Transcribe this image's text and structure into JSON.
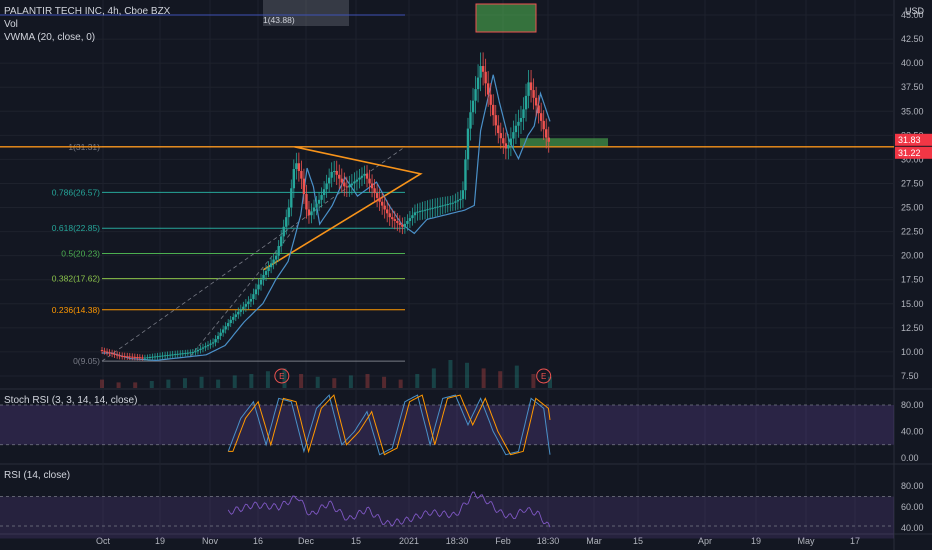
{
  "header": {
    "symbol": "PALANTIR TECH INC, 4h, Cboe BZX",
    "vol": "Vol",
    "vwma": "VWMA (20, close, 0)",
    "currency": "USD"
  },
  "stoch": {
    "label": "Stoch RSI (3, 3, 14, 14, close)"
  },
  "rsi": {
    "label": "RSI (14, close)"
  },
  "colors": {
    "background": "#131722",
    "up": "#26a69a",
    "down": "#ef5350",
    "vwma": "#4a90c8",
    "trend": "#f7931a",
    "fib_teal": "#26a69a",
    "fib_green": "#4caf50",
    "fib_lime": "#8bc34a",
    "fib_orange": "#ff9800",
    "fib_gray": "#787b86",
    "rsi_band": "#7e57c2",
    "price_tag": "#f23645"
  },
  "chart_data": {
    "type": "candlestick",
    "y_axis": {
      "min": 7.5,
      "max": 45.0,
      "ticks": [
        "45.00",
        "42.50",
        "40.00",
        "37.50",
        "35.00",
        "32.50",
        "30.00",
        "27.50",
        "25.00",
        "22.50",
        "20.00",
        "17.50",
        "15.00",
        "12.50",
        "10.00",
        "7.50"
      ]
    },
    "x_axis": {
      "ticks": [
        "Oct",
        "19",
        "Nov",
        "16",
        "Dec",
        "15",
        "2021",
        "18:30",
        "Feb",
        "18:30",
        "Mar",
        "15",
        "Apr",
        "19",
        "May",
        "17"
      ]
    },
    "price_anchors": [
      {
        "t": 0,
        "y": 10.2
      },
      {
        "t": 6,
        "y": 9.6
      },
      {
        "t": 14,
        "y": 9.4
      },
      {
        "t": 22,
        "y": 9.7
      },
      {
        "t": 30,
        "y": 10.0
      },
      {
        "t": 36,
        "y": 11.0
      },
      {
        "t": 42,
        "y": 13.5
      },
      {
        "t": 48,
        "y": 15.5
      },
      {
        "t": 52,
        "y": 18.0
      },
      {
        "t": 56,
        "y": 20.0
      },
      {
        "t": 60,
        "y": 25.0
      },
      {
        "t": 62,
        "y": 30.0
      },
      {
        "t": 64,
        "y": 28.0
      },
      {
        "t": 66,
        "y": 24.0
      },
      {
        "t": 70,
        "y": 26.0
      },
      {
        "t": 74,
        "y": 29.0
      },
      {
        "t": 78,
        "y": 27.0
      },
      {
        "t": 84,
        "y": 28.5
      },
      {
        "t": 88,
        "y": 26.0
      },
      {
        "t": 92,
        "y": 24.0
      },
      {
        "t": 96,
        "y": 23.0
      },
      {
        "t": 100,
        "y": 24.5
      },
      {
        "t": 106,
        "y": 25.0
      },
      {
        "t": 112,
        "y": 25.5
      },
      {
        "t": 115,
        "y": 26.0
      },
      {
        "t": 117,
        "y": 34.0
      },
      {
        "t": 119,
        "y": 37.0
      },
      {
        "t": 121,
        "y": 40.0
      },
      {
        "t": 123,
        "y": 37.0
      },
      {
        "t": 126,
        "y": 33.0
      },
      {
        "t": 129,
        "y": 31.0
      },
      {
        "t": 132,
        "y": 33.5
      },
      {
        "t": 134,
        "y": 34.5
      },
      {
        "t": 136,
        "y": 38.0
      },
      {
        "t": 138,
        "y": 36.0
      },
      {
        "t": 140,
        "y": 34.0
      },
      {
        "t": 142,
        "y": 31.83
      }
    ],
    "volume_relative": [
      0.3,
      0.2,
      0.2,
      0.25,
      0.3,
      0.35,
      0.4,
      0.3,
      0.45,
      0.5,
      0.6,
      0.7,
      0.5,
      0.4,
      0.35,
      0.45,
      0.5,
      0.4,
      0.3,
      0.5,
      0.7,
      1.0,
      0.9,
      0.7,
      0.6,
      0.8,
      0.5,
      0.4
    ],
    "current_price": "31.83",
    "current_price_b": "31.22",
    "fib_levels": [
      {
        "label": "1(31.31)",
        "value": 31.31,
        "color_key": "fib_gray"
      },
      {
        "label": "0.786(26.57)",
        "value": 26.57,
        "color_key": "fib_teal"
      },
      {
        "label": "0.618(22.85)",
        "value": 22.85,
        "color_key": "fib_teal"
      },
      {
        "label": "0.5(20.23)",
        "value": 20.23,
        "color_key": "fib_green"
      },
      {
        "label": "0.382(17.62)",
        "value": 17.62,
        "color_key": "fib_lime"
      },
      {
        "label": "0.236(14.38)",
        "value": 14.38,
        "color_key": "fib_orange"
      },
      {
        "label": "0(9.05)",
        "value": 9.05,
        "color_key": "fib_gray"
      }
    ],
    "top_fib_label": "1(43.88)",
    "earnings_marks": [
      "E",
      "E"
    ],
    "stoch_rsi": {
      "ticks": [
        "80.00",
        "40.00",
        "0.00"
      ],
      "band": [
        20,
        80
      ],
      "k_anchors": [
        {
          "t": 40,
          "v": 10
        },
        {
          "t": 44,
          "v": 60
        },
        {
          "t": 48,
          "v": 85
        },
        {
          "t": 52,
          "v": 20
        },
        {
          "t": 56,
          "v": 90
        },
        {
          "t": 60,
          "v": 85
        },
        {
          "t": 64,
          "v": 10
        },
        {
          "t": 68,
          "v": 75
        },
        {
          "t": 72,
          "v": 95
        },
        {
          "t": 76,
          "v": 20
        },
        {
          "t": 80,
          "v": 40
        },
        {
          "t": 84,
          "v": 70
        },
        {
          "t": 88,
          "v": 5
        },
        {
          "t": 92,
          "v": 15
        },
        {
          "t": 96,
          "v": 85
        },
        {
          "t": 100,
          "v": 95
        },
        {
          "t": 104,
          "v": 20
        },
        {
          "t": 108,
          "v": 90
        },
        {
          "t": 112,
          "v": 95
        },
        {
          "t": 116,
          "v": 50
        },
        {
          "t": 120,
          "v": 90
        },
        {
          "t": 124,
          "v": 40
        },
        {
          "t": 128,
          "v": 5
        },
        {
          "t": 132,
          "v": 10
        },
        {
          "t": 136,
          "v": 90
        },
        {
          "t": 140,
          "v": 75
        },
        {
          "t": 142,
          "v": 5
        }
      ]
    },
    "rsi_data": {
      "ticks": [
        "80.00",
        "60.00",
        "40.00"
      ],
      "band": [
        30,
        70
      ],
      "anchors": [
        {
          "t": 40,
          "v": 55
        },
        {
          "t": 48,
          "v": 62
        },
        {
          "t": 56,
          "v": 60
        },
        {
          "t": 62,
          "v": 70
        },
        {
          "t": 66,
          "v": 52
        },
        {
          "t": 72,
          "v": 64
        },
        {
          "t": 78,
          "v": 48
        },
        {
          "t": 84,
          "v": 58
        },
        {
          "t": 90,
          "v": 44
        },
        {
          "t": 96,
          "v": 47
        },
        {
          "t": 104,
          "v": 55
        },
        {
          "t": 112,
          "v": 52
        },
        {
          "t": 118,
          "v": 73
        },
        {
          "t": 122,
          "v": 66
        },
        {
          "t": 126,
          "v": 55
        },
        {
          "t": 130,
          "v": 50
        },
        {
          "t": 134,
          "v": 58
        },
        {
          "t": 138,
          "v": 54
        },
        {
          "t": 142,
          "v": 40
        }
      ]
    }
  }
}
